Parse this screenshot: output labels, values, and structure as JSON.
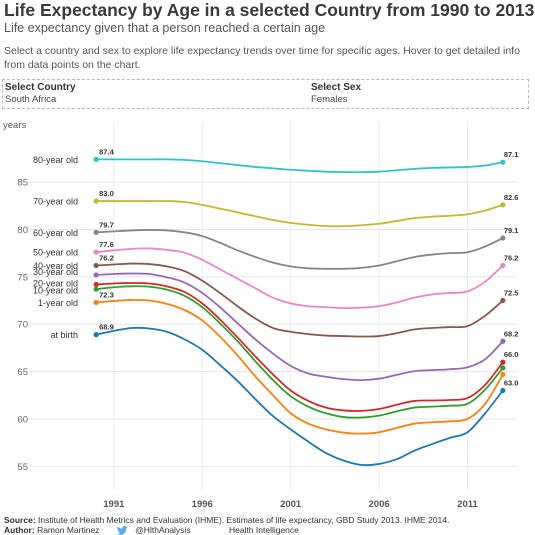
{
  "header": {
    "title": "Life Expectancy by Age in a selected Country from 1990 to 2013",
    "subtitle": "Life expectancy given that a person reached a certain age",
    "description": "Select a country and sex to explore life expectancy trends over time for specific ages. Hover to get detailed info from data points on the chart."
  },
  "filters": {
    "country_label": "Select Country",
    "country_value": "South Africa",
    "sex_label": "Select Sex",
    "sex_value": "Females"
  },
  "footer": {
    "source_label": "Source:",
    "source_text": "Institute of Health Metrics and Evaluation (IHME). Estimates of life expectancy, GBD Study 2013. IHME 2014.",
    "author_label": "Author:",
    "author_name": "Ramon Martinez",
    "twitter_handle": "@HlthAnalysis",
    "organization": "Health Intelligence",
    "twitter_icon": "twitter-bird-icon",
    "twitter_color": "#55acee"
  },
  "chart_data": {
    "type": "line",
    "ylabel": "years",
    "ylim": [
      52.5,
      90.5
    ],
    "xlim": [
      1989.2,
      2013.8
    ],
    "yticks": [
      55,
      60,
      65,
      70,
      75,
      80,
      85
    ],
    "xticks": [
      1991,
      1996,
      2001,
      2006,
      2011
    ],
    "grid": true,
    "x": [
      1990,
      1991,
      1992,
      1993,
      1994,
      1995,
      1996,
      1997,
      1998,
      1999,
      2000,
      2001,
      2002,
      2003,
      2004,
      2005,
      2006,
      2007,
      2008,
      2009,
      2010,
      2011,
      2012,
      2013
    ],
    "series": [
      {
        "name": "80-year old",
        "color": "#2ec4c8",
        "start_label": "87.4",
        "end_label": "87.1",
        "values": [
          87.4,
          87.4,
          87.4,
          87.4,
          87.4,
          87.35,
          87.2,
          87.0,
          86.8,
          86.6,
          86.45,
          86.3,
          86.2,
          86.1,
          86.05,
          86.05,
          86.1,
          86.25,
          86.4,
          86.5,
          86.55,
          86.6,
          86.75,
          87.1
        ]
      },
      {
        "name": "70-year old",
        "color": "#c4b82e",
        "start_label": "83.0",
        "end_label": "82.6",
        "values": [
          83.0,
          83.0,
          83.0,
          83.0,
          83.0,
          82.9,
          82.6,
          82.2,
          81.8,
          81.4,
          81.0,
          80.7,
          80.5,
          80.35,
          80.35,
          80.45,
          80.6,
          80.9,
          81.2,
          81.35,
          81.45,
          81.6,
          82.0,
          82.6
        ]
      },
      {
        "name": "60-year old",
        "color": "#868686",
        "start_label": "79.7",
        "end_label": "79.1",
        "values": [
          79.7,
          79.8,
          79.9,
          79.95,
          79.9,
          79.7,
          79.3,
          78.6,
          77.8,
          77.1,
          76.5,
          76.1,
          75.9,
          75.85,
          75.85,
          75.95,
          76.2,
          76.65,
          77.1,
          77.35,
          77.5,
          77.6,
          78.2,
          79.1
        ]
      },
      {
        "name": "50-year old",
        "color": "#ea84c9",
        "start_label": "77.6",
        "end_label": "76.2",
        "values": [
          77.6,
          77.8,
          77.95,
          78.0,
          77.85,
          77.55,
          76.8,
          75.8,
          74.8,
          73.8,
          72.8,
          72.2,
          71.9,
          71.8,
          71.7,
          71.75,
          71.9,
          72.3,
          72.8,
          73.15,
          73.3,
          73.45,
          74.5,
          76.2
        ]
      },
      {
        "name": "40-year old",
        "color": "#8c564b",
        "start_label": "76.2",
        "end_label": "72.5",
        "values": [
          76.2,
          76.3,
          76.4,
          76.35,
          76.1,
          75.6,
          74.6,
          73.3,
          71.9,
          70.6,
          69.6,
          69.2,
          68.95,
          68.8,
          68.75,
          68.7,
          68.75,
          69.05,
          69.45,
          69.6,
          69.7,
          69.8,
          70.9,
          72.5
        ]
      },
      {
        "name": "30-year old",
        "color": "#9467bd",
        "start_label": "",
        "end_label": "68.2",
        "values": [
          75.2,
          75.3,
          75.35,
          75.3,
          74.95,
          74.4,
          73.3,
          71.8,
          70.1,
          68.4,
          66.9,
          65.6,
          64.8,
          64.45,
          64.2,
          64.1,
          64.25,
          64.65,
          65.05,
          65.15,
          65.25,
          65.45,
          66.3,
          68.2
        ]
      },
      {
        "name": "20-year old",
        "color": "#d62728",
        "start_label": "",
        "end_label": "66.0",
        "values": [
          74.2,
          74.3,
          74.35,
          74.3,
          74.0,
          73.4,
          72.2,
          70.5,
          68.6,
          66.6,
          64.7,
          63.0,
          61.9,
          61.2,
          60.9,
          60.85,
          61.05,
          61.5,
          61.9,
          61.95,
          62.0,
          62.2,
          63.6,
          66.0
        ]
      },
      {
        "name": "10-year old",
        "color": "#2ca02c",
        "start_label": "",
        "end_label": "",
        "values": [
          73.7,
          73.9,
          74.0,
          73.95,
          73.65,
          73.0,
          71.8,
          70.1,
          68.2,
          66.1,
          64.1,
          62.4,
          61.3,
          60.6,
          60.2,
          60.15,
          60.35,
          60.8,
          61.2,
          61.3,
          61.4,
          61.6,
          63.1,
          65.4
        ]
      },
      {
        "name": "1-year old",
        "color": "#ff7f0e",
        "start_label": "72.3",
        "end_label": "",
        "values": [
          72.3,
          72.45,
          72.55,
          72.5,
          72.15,
          71.5,
          70.4,
          68.7,
          66.7,
          64.5,
          62.5,
          60.6,
          59.5,
          58.9,
          58.55,
          58.45,
          58.6,
          59.05,
          59.5,
          59.65,
          59.75,
          60.0,
          61.6,
          64.7
        ]
      },
      {
        "name": "at birth",
        "color": "#1f77b4",
        "start_label": "68.9",
        "end_label": "63.0",
        "values": [
          68.9,
          69.3,
          69.6,
          69.55,
          69.2,
          68.4,
          67.3,
          65.7,
          64.0,
          62.1,
          60.3,
          58.9,
          57.6,
          56.4,
          55.6,
          55.15,
          55.25,
          55.75,
          56.65,
          57.35,
          58.0,
          58.6,
          60.6,
          63.0
        ]
      }
    ]
  }
}
